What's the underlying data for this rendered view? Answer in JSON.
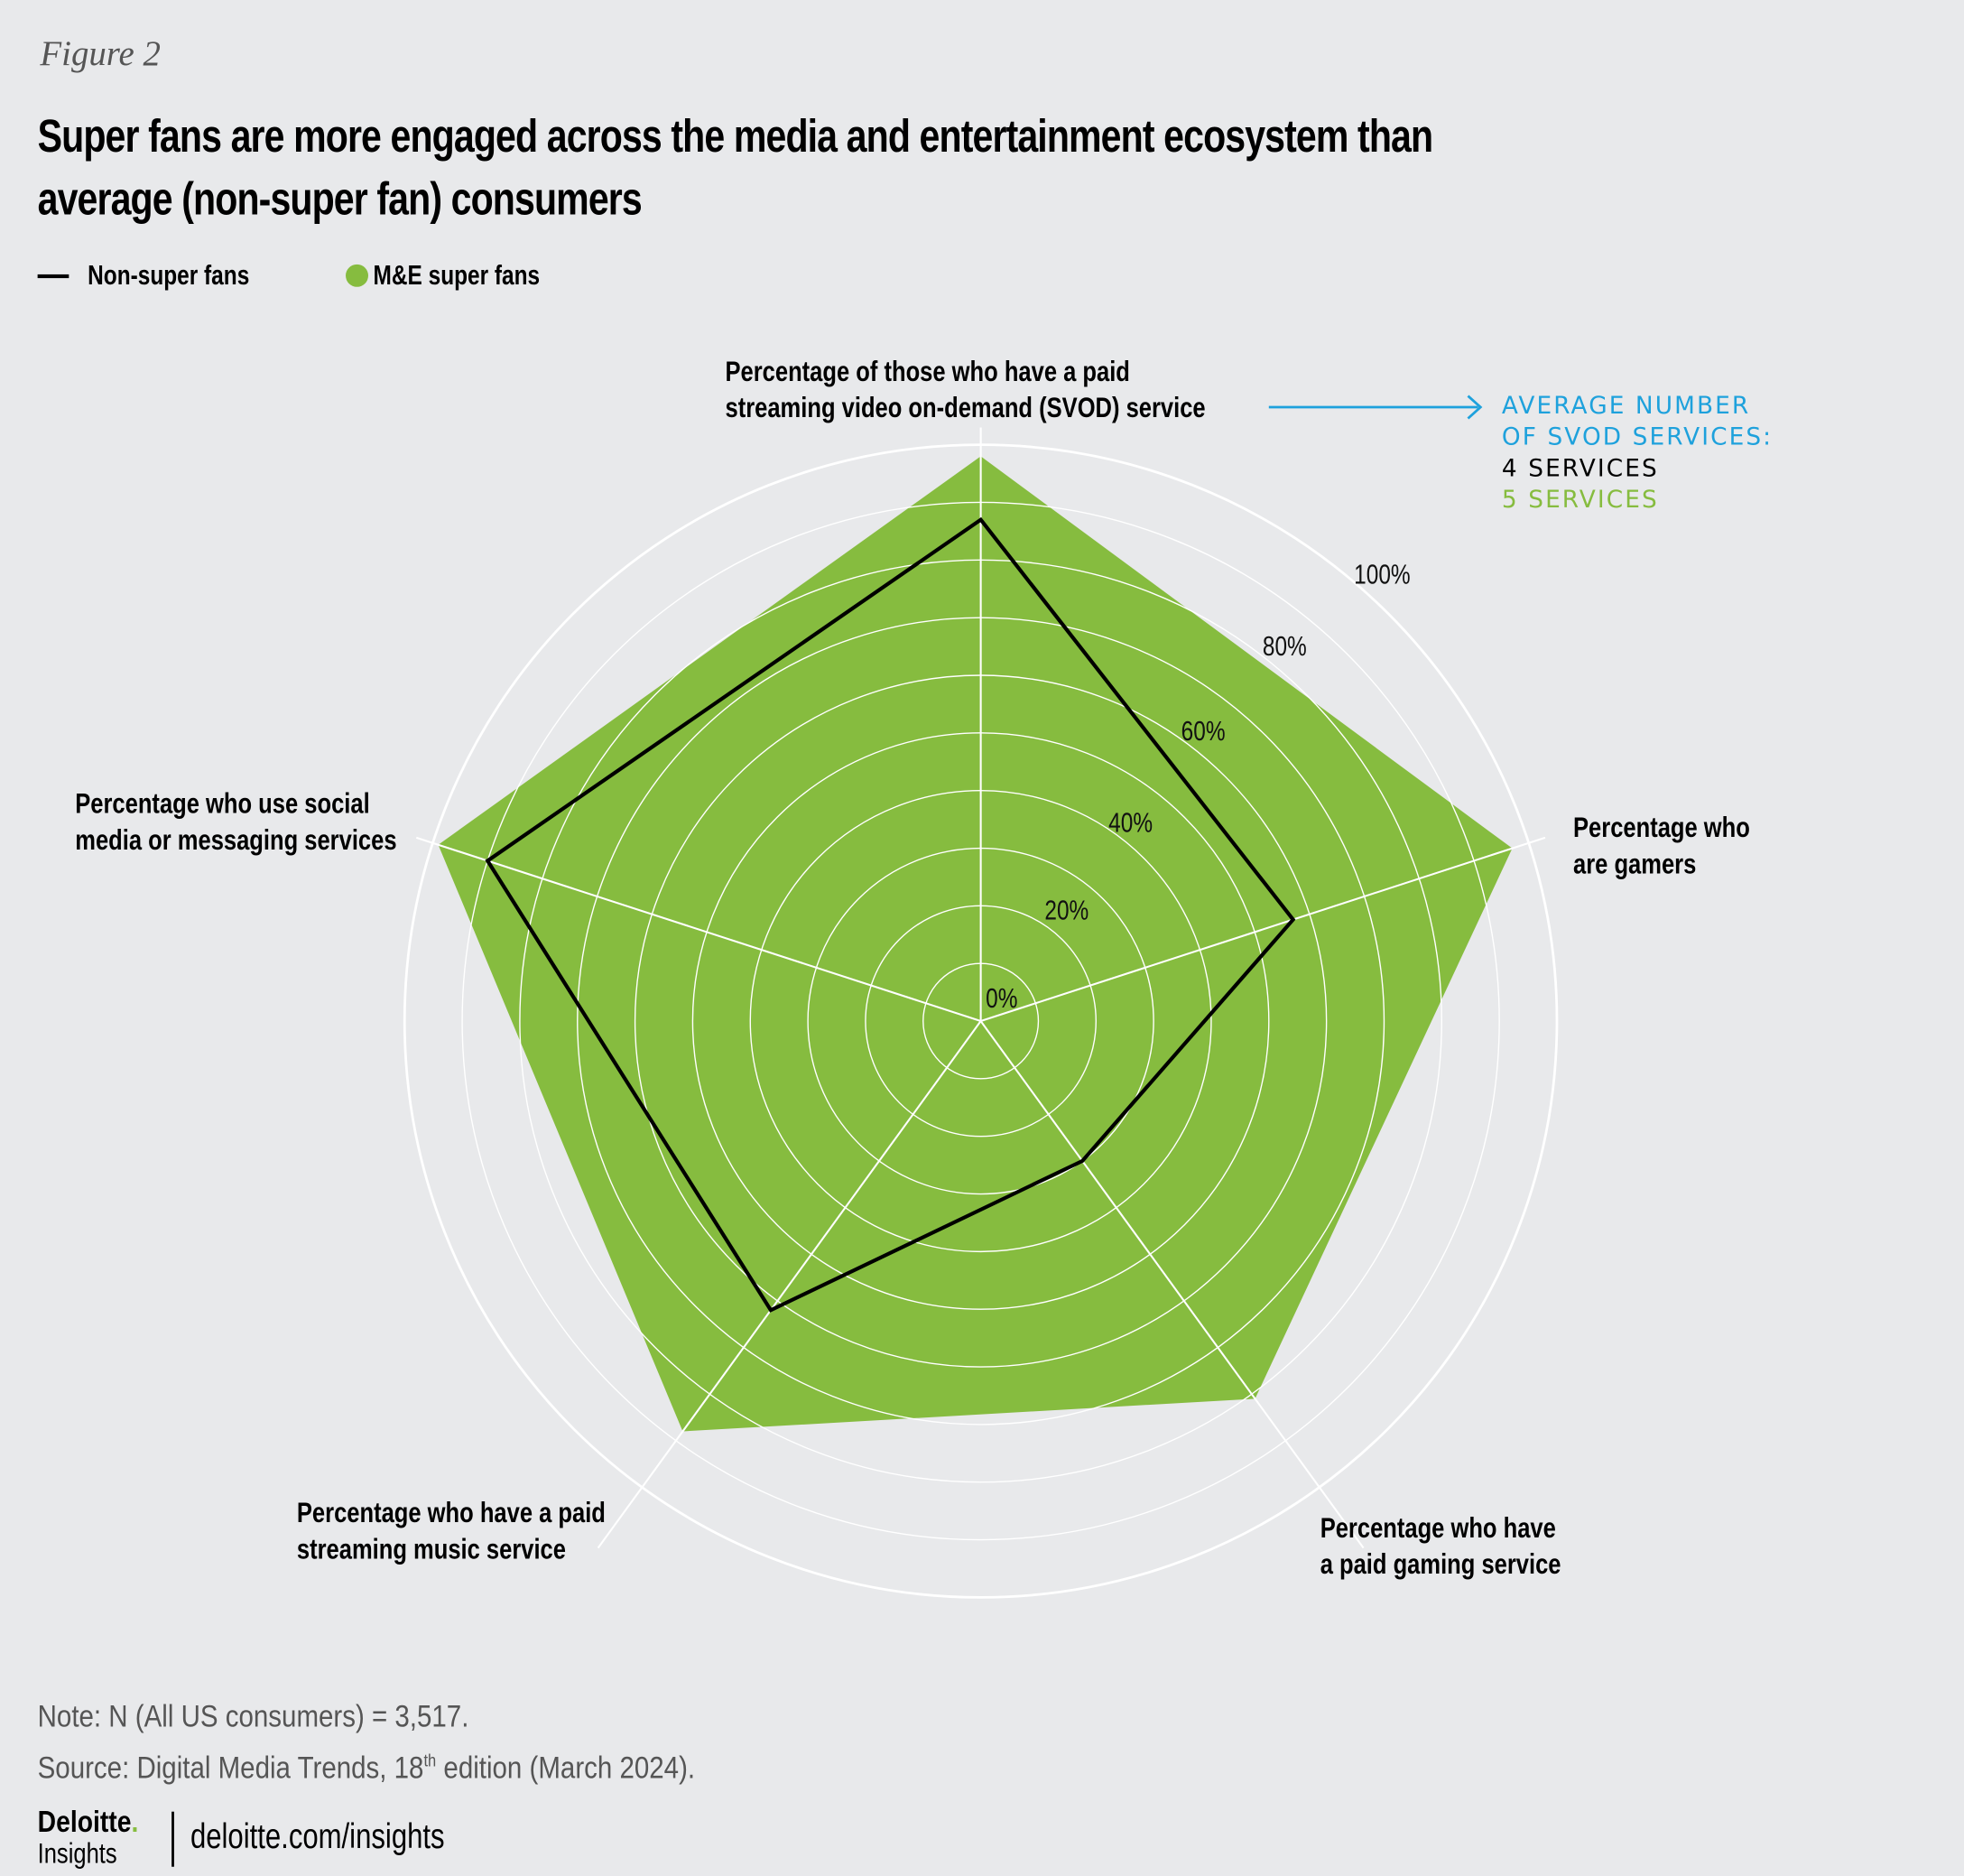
{
  "figure_label": "Figure 2",
  "title_lines": [
    "Super fans are more engaged across the media and entertainment ecosystem than",
    "average (non-super fan) consumers"
  ],
  "colors": {
    "background": "#e8e9eb",
    "super_fans": "#86bc3f",
    "non_super_fans": "#000000",
    "annotation_blue": "#1ea1dc",
    "grid": "#ffffff"
  },
  "chart_data": {
    "type": "radar",
    "axes": [
      {
        "label_lines": [
          "Percentage of those who have a paid",
          "streaming video on-demand (SVOD) service"
        ]
      },
      {
        "label_lines": [
          "Percentage who",
          "are gamers"
        ]
      },
      {
        "label_lines": [
          "Percentage who have",
          "a paid gaming service"
        ]
      },
      {
        "label_lines": [
          "Percentage who have a paid",
          "streaming music service"
        ]
      },
      {
        "label_lines": [
          "Percentage who use social",
          "media or messaging services"
        ]
      }
    ],
    "series": [
      {
        "name": "M&E super fans",
        "style": "filled",
        "color": "#86bc3f",
        "values": [
          98,
          97,
          81,
          88,
          99
        ]
      },
      {
        "name": "Non-super fans",
        "style": "line",
        "color": "#000000",
        "values": [
          87,
          57,
          30,
          62,
          90
        ]
      }
    ],
    "radial_range": [
      0,
      100
    ],
    "radial_grid_step": 10,
    "tick_labels": [
      "0%",
      "20%",
      "40%",
      "60%",
      "80%",
      "100%"
    ],
    "legend": {
      "placement": "top-left",
      "items": [
        "Non-super fans",
        "M&E super fans"
      ]
    },
    "annotation": {
      "heading_lines": [
        "Average number",
        "of SVOD services:"
      ],
      "non_super_fans": "4 services",
      "super_fans": "5 services"
    }
  },
  "footer": {
    "note": "Note: N (All US consumers) = 3,517.",
    "source_prefix": "Source: Digital Media Trends, 18",
    "source_sup": "th",
    "source_suffix": " edition (March 2024).",
    "logo_brand": "Deloitte",
    "logo_sub": "Insights",
    "url": "deloitte.com/insights"
  }
}
